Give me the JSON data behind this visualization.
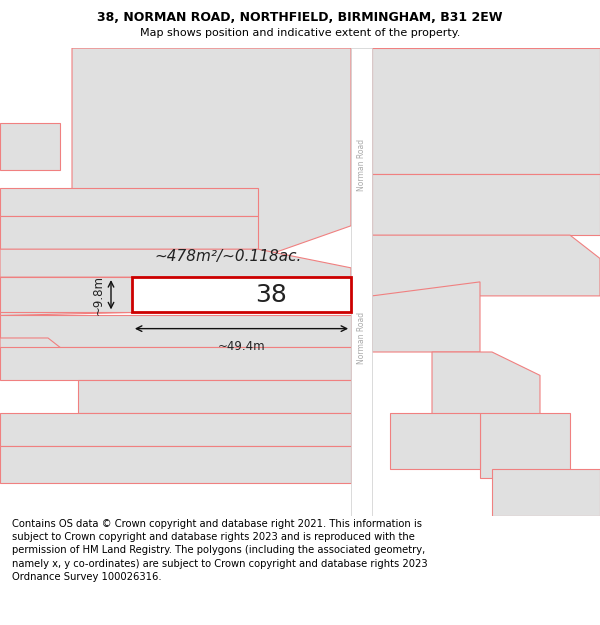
{
  "title_line1": "38, NORMAN ROAD, NORTHFIELD, BIRMINGHAM, B31 2EW",
  "title_line2": "Map shows position and indicative extent of the property.",
  "footer_text": "Contains OS data © Crown copyright and database right 2021. This information is subject to Crown copyright and database rights 2023 and is reproduced with the permission of HM Land Registry. The polygons (including the associated geometry, namely x, y co-ordinates) are subject to Crown copyright and database rights 2023 Ordnance Survey 100026316.",
  "background_color": "#ffffff",
  "map_bg_color": "#ffffff",
  "road_color": "#ffffff",
  "plot_fill": "#ffffff",
  "plot_edge_color": "#cc0000",
  "neighbor_edge_color": "#f08080",
  "neighbor_fill": "#e0e0e0",
  "road_label": "Norman Road",
  "plot_label": "38",
  "area_label": "~478m²/~0.118ac.",
  "width_label": "~49.4m",
  "height_label": "~9.8m",
  "title_fontsize": 9.0,
  "subtitle_fontsize": 8.0,
  "footer_fontsize": 7.2,
  "label_fontsize": 14,
  "dim_fontsize": 8.5
}
